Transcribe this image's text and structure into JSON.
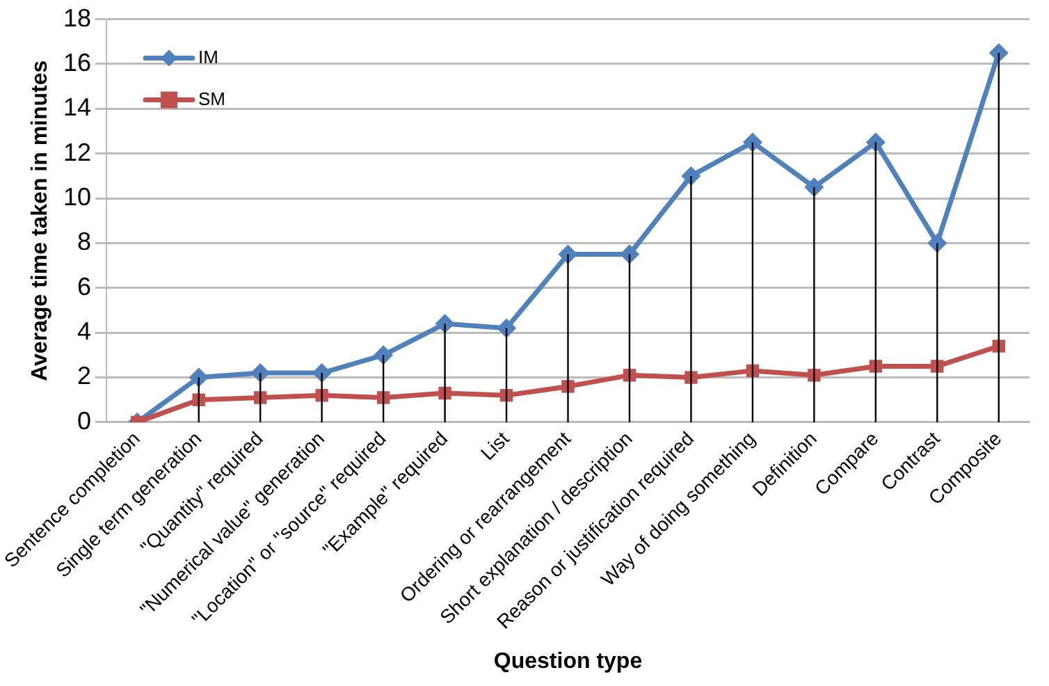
{
  "chart_data": {
    "type": "line",
    "xlabel": "Question type",
    "ylabel": "Average time taken in minutes",
    "categories": [
      "Sentence completion",
      "Single term generation",
      "\"Quantity\" required",
      "\"Numerical value\" generation",
      "\"Location\" or \"source\" required",
      "\"Example\" required",
      "List",
      "Ordering or rearrangement",
      "Short explanation / description",
      "Reason or justification required",
      "Way of doing something",
      "Definition",
      "Compare",
      "Contrast",
      "Composite"
    ],
    "series": [
      {
        "name": "IM",
        "color": "#4f81bd",
        "marker": "diamond",
        "values": [
          0,
          2,
          2.2,
          2.2,
          3,
          4.4,
          4.2,
          7.5,
          7.5,
          11,
          12.5,
          10.5,
          12.5,
          8,
          16.5
        ],
        "errors": [
          [
            0,
            0
          ],
          [
            0,
            2
          ],
          [
            0,
            2.2
          ],
          [
            0,
            2.2
          ],
          [
            0,
            3
          ],
          [
            0,
            4.4
          ],
          [
            0,
            4.2
          ],
          [
            0,
            7.5
          ],
          [
            0,
            7.5
          ],
          [
            0,
            11
          ],
          [
            0,
            12.5
          ],
          [
            0,
            10.5
          ],
          [
            0,
            12.5
          ],
          [
            0,
            8
          ],
          [
            0,
            16.5
          ]
        ]
      },
      {
        "name": "SM",
        "color": "#c0504d",
        "marker": "square",
        "values": [
          0,
          1,
          1.1,
          1.2,
          1.1,
          1.3,
          1.2,
          1.6,
          2.1,
          2,
          2.3,
          2.1,
          2.5,
          2.5,
          3.4
        ]
      }
    ],
    "ylim": [
      0,
      18
    ],
    "yticks": [
      0,
      2,
      4,
      6,
      8,
      10,
      12,
      14,
      16,
      18
    ],
    "grid": "y",
    "legend": "top left",
    "line_style": "solid"
  }
}
